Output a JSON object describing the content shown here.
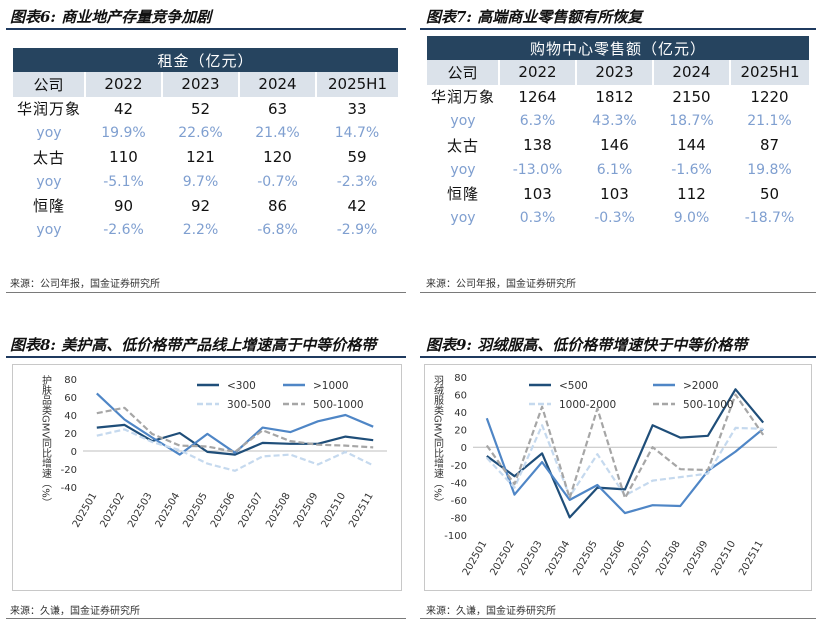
{
  "panel6": {
    "title": "图表6: 商业地产存量竞争加剧",
    "table_title": "租金（亿元）",
    "headers": [
      "公司",
      "2022",
      "2023",
      "2024",
      "2025H1"
    ],
    "rows": [
      {
        "type": "company",
        "cells": [
          "华润万象",
          "42",
          "52",
          "63",
          "33"
        ]
      },
      {
        "type": "yoy",
        "cells": [
          "yoy",
          "19.9%",
          "22.6%",
          "21.4%",
          "14.7%"
        ]
      },
      {
        "type": "company",
        "cells": [
          "太古",
          "110",
          "121",
          "120",
          "59"
        ]
      },
      {
        "type": "yoy",
        "cells": [
          "yoy",
          "-5.1%",
          "9.7%",
          "-0.7%",
          "-2.3%"
        ]
      },
      {
        "type": "company",
        "cells": [
          "恒隆",
          "90",
          "92",
          "86",
          "42"
        ]
      },
      {
        "type": "yoy",
        "cells": [
          "yoy",
          "-2.6%",
          "2.2%",
          "-6.8%",
          "-2.9%"
        ]
      }
    ],
    "source": "来源：公司年报，国金证券研究所"
  },
  "panel7": {
    "title": "图表7: 高端商业零售额有所恢复",
    "table_title": "购物中心零售额（亿元）",
    "headers": [
      "公司",
      "2022",
      "2023",
      "2024",
      "2025H1"
    ],
    "rows": [
      {
        "type": "company",
        "cells": [
          "华润万象",
          "1264",
          "1812",
          "2150",
          "1220"
        ]
      },
      {
        "type": "yoy",
        "cells": [
          "yoy",
          "6.3%",
          "43.3%",
          "18.7%",
          "21.1%"
        ]
      },
      {
        "type": "company",
        "cells": [
          "太古",
          "138",
          "146",
          "144",
          "87"
        ]
      },
      {
        "type": "yoy",
        "cells": [
          "yoy",
          "-13.0%",
          "6.1%",
          "-1.6%",
          "19.8%"
        ]
      },
      {
        "type": "company",
        "cells": [
          "恒隆",
          "103",
          "103",
          "112",
          "50"
        ]
      },
      {
        "type": "yoy",
        "cells": [
          "yoy",
          "0.3%",
          "-0.3%",
          "9.0%",
          "-18.7%"
        ]
      }
    ],
    "source": "来源：公司年报，国金证券研究所"
  },
  "panel8": {
    "title": "图表8: 美护高、低价格带产品线上增速高于中等价格带",
    "source": "来源：久谦，国金证券研究所"
  },
  "panel9": {
    "title": "图表9: 羽绒服高、低价格带增速快于中等价格带",
    "source": "来源：久谦，国金证券研究所"
  },
  "chart_data": [
    {
      "type": "line",
      "id": "chart8",
      "title": "",
      "ylabel": "护肤品类GMV同比增速（%）",
      "xlabel": "",
      "ylim": [
        -40,
        80
      ],
      "yticks": [
        -40,
        -20,
        0,
        20,
        40,
        60,
        80
      ],
      "categories": [
        "202501",
        "202502",
        "202503",
        "202504",
        "202505",
        "202506",
        "202507",
        "202508",
        "202509",
        "202510",
        "202511"
      ],
      "series": [
        {
          "name": "<300",
          "color": "#1f4e79",
          "dash": "solid",
          "values": [
            26,
            29,
            11,
            20,
            -1,
            -4,
            9,
            8,
            8,
            16,
            12
          ]
        },
        {
          "name": ">1000",
          "color": "#4f86c6",
          "dash": "solid",
          "values": [
            64,
            35,
            15,
            -4,
            19,
            -2,
            26,
            21,
            33,
            40,
            27
          ]
        },
        {
          "name": "300-500",
          "color": "#c5d9ee",
          "dash": "dashed",
          "values": [
            17,
            24,
            10,
            1,
            -14,
            -22,
            -6,
            -4,
            -15,
            -1,
            -16
          ]
        },
        {
          "name": "500-1000",
          "color": "#a6a6a6",
          "dash": "dashed",
          "values": [
            42,
            48,
            19,
            6,
            5,
            -1,
            23,
            11,
            7,
            6,
            4
          ]
        }
      ],
      "legend": "top-right"
    },
    {
      "type": "line",
      "id": "chart9",
      "title": "",
      "ylabel": "羽绒服类GMV同比增速（%）",
      "xlabel": "",
      "ylim": [
        -100,
        80
      ],
      "yticks": [
        -100,
        -80,
        -60,
        -40,
        -20,
        0,
        20,
        40,
        60,
        80
      ],
      "categories": [
        "202501",
        "202502",
        "202503",
        "202504",
        "202505",
        "202506",
        "202507",
        "202508",
        "202509",
        "202510",
        "202511"
      ],
      "series": [
        {
          "name": "<500",
          "color": "#1f4e79",
          "dash": "solid",
          "values": [
            -10,
            -33,
            -7,
            -80,
            -46,
            -48,
            25,
            11,
            13,
            66,
            28
          ]
        },
        {
          "name": ">2000",
          "color": "#4f86c6",
          "dash": "solid",
          "values": [
            33,
            -54,
            -17,
            -60,
            -43,
            -75,
            -66,
            -67,
            -27,
            -5,
            21
          ]
        },
        {
          "name": "1000-2000",
          "color": "#c5d9ee",
          "dash": "dashed",
          "values": [
            -12,
            -46,
            25,
            -56,
            -8,
            -55,
            -38,
            -34,
            -30,
            22,
            21
          ]
        },
        {
          "name": "500-1000",
          "color": "#a6a6a6",
          "dash": "dashed",
          "values": [
            2,
            -42,
            46,
            -58,
            44,
            -58,
            0,
            -25,
            -26,
            60,
            14
          ]
        }
      ],
      "legend": "top-right"
    }
  ]
}
